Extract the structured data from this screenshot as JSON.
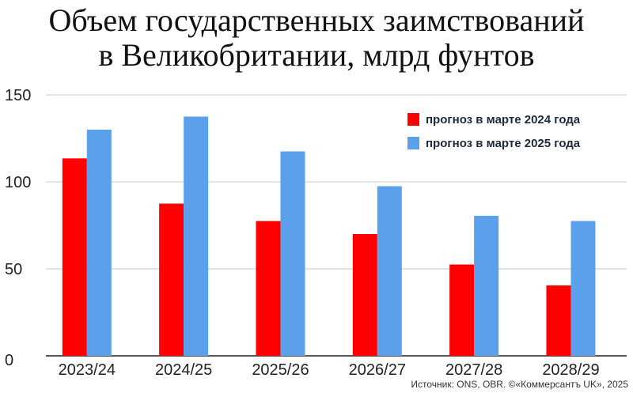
{
  "chart_data": {
    "type": "bar",
    "title_lines": [
      "Объем государственных заимствований",
      "в Великобритании, млрд фунтов"
    ],
    "categories": [
      "2023/24",
      "2024/25",
      "2025/26",
      "2026/27",
      "2027/28",
      "2028/29"
    ],
    "series": [
      {
        "name": "прогноз в марте 2024 года",
        "color": "#ff0000",
        "values": [
          113.5,
          87.5,
          77.5,
          70,
          52.5,
          40.5
        ]
      },
      {
        "name": "прогноз в марте 2025 года",
        "color": "#5aa0ea",
        "values": [
          130,
          137.5,
          117.5,
          97.5,
          80.5,
          77.5
        ]
      }
    ],
    "yticks": [
      0,
      50,
      100,
      150
    ],
    "ylim": [
      0,
      150
    ],
    "xlabel": "",
    "ylabel": "",
    "grid": true,
    "legend_position": "top-right"
  },
  "source": "Источник: ONS, OBR. ©«Коммерсантъ UK», 2025"
}
